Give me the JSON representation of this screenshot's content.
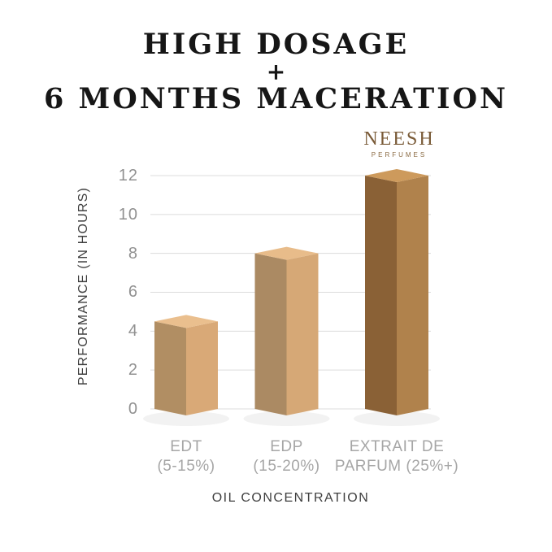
{
  "title": {
    "line1": "HIGH DOSAGE",
    "line2": "+",
    "line3": "6 MONTHS MACERATION"
  },
  "brand": {
    "name": "NEESH",
    "subtitle": "PERFUMES",
    "color": "#7a5b38"
  },
  "chart_data": {
    "type": "bar",
    "style": "3d-corner-bars",
    "title": "HIGH DOSAGE + 6 MONTHS MACERATION",
    "categories": [
      "EDT (5-15%)",
      "EDP (15-20%)",
      "EXTRAIT DE PARFUM (25%+)"
    ],
    "category_lines": [
      [
        "EDT",
        "(5-15%)"
      ],
      [
        "EDP",
        "(15-20%)"
      ],
      [
        "EXTRAIT DE",
        "PARFUM (25%+)"
      ]
    ],
    "values": [
      4.5,
      8,
      12
    ],
    "xlabel": "OIL CONCENTRATION",
    "ylabel": "PERFORMANCE (IN HOURS)",
    "yticks": [
      0,
      2,
      4,
      6,
      8,
      10,
      12
    ],
    "ylim": [
      0,
      12
    ],
    "grid": true,
    "legend": false,
    "gridline_color": "#dcdcdc",
    "tick_color": "#919191",
    "category_color": "#a6a6a6",
    "axis_title_color": "#3f3f3f",
    "bar_colors": [
      {
        "left": "#b18e63",
        "right": "#d9a977",
        "top": "#eabf8e"
      },
      {
        "left": "#ab8a63",
        "right": "#d6a876",
        "top": "#e8bc8a"
      },
      {
        "left": "#8a6136",
        "right": "#b0824c",
        "top": "#cd9a5c"
      }
    ]
  }
}
